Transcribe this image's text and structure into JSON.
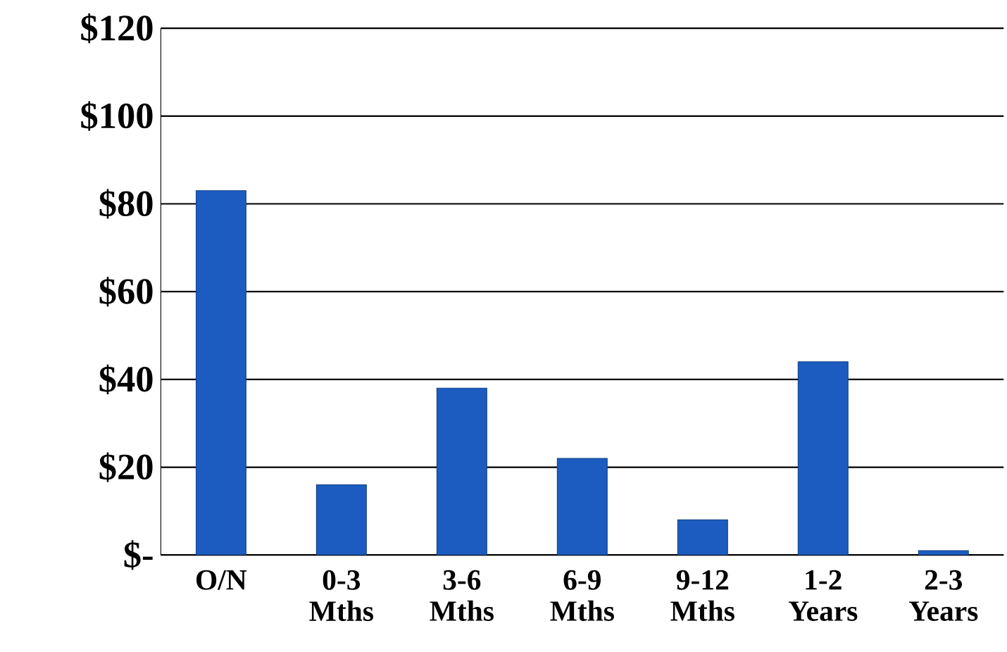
{
  "chart_data": {
    "type": "bar",
    "categories": [
      "O/N",
      "0-3 Mths",
      "3-6 Mths",
      "6-9 Mths",
      "9-12 Mths",
      "1-2 Years",
      "2-3 Years"
    ],
    "values": [
      83,
      16,
      38,
      22,
      8,
      44,
      1
    ],
    "color": "#1c5cc0",
    "ylim": [
      0,
      120
    ],
    "yticks": [
      {
        "value": 0,
        "label": "$-"
      },
      {
        "value": 20,
        "label": "$20"
      },
      {
        "value": 40,
        "label": "$40"
      },
      {
        "value": 60,
        "label": "$60"
      },
      {
        "value": 80,
        "label": "$80"
      },
      {
        "value": 100,
        "label": "$100"
      },
      {
        "value": 120,
        "label": "$120"
      }
    ],
    "grid": "y"
  }
}
